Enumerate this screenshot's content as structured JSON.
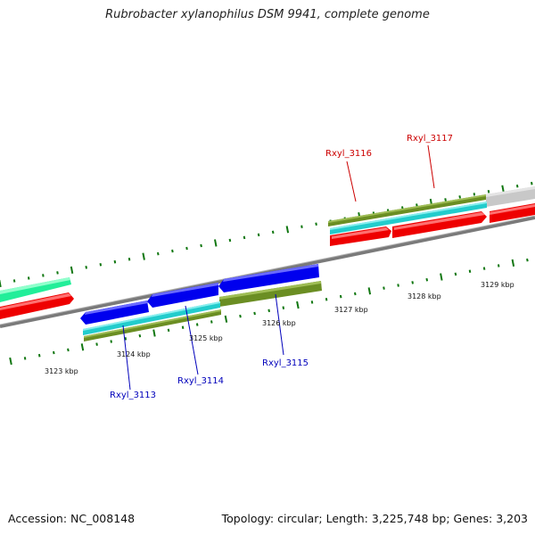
{
  "title": "Rubrobacter xylanophilus DSM 9941, complete genome",
  "footer": {
    "accession": "Accession: NC_008148",
    "summary": "Topology: circular; Length: 3,225,748 bp; Genes: 3,203"
  },
  "scale": {
    "tick_labels": [
      "3123 kbp",
      "3124 kbp",
      "3125 kbp",
      "3126 kbp",
      "3127 kbp",
      "3128 kbp",
      "3129 kbp"
    ]
  },
  "genes": {
    "labeled": [
      {
        "name": "Rxyl_3113",
        "strand": "reverse"
      },
      {
        "name": "Rxyl_3114",
        "strand": "reverse"
      },
      {
        "name": "Rxyl_3115",
        "strand": "reverse"
      },
      {
        "name": "Rxyl_3116",
        "strand": "forward"
      },
      {
        "name": "Rxyl_3117",
        "strand": "forward"
      }
    ]
  },
  "colors": {
    "forward_label": "#cc0000",
    "reverse_label": "#0000bb",
    "cds_forward": "#ee0000",
    "cds_reverse": "#0000ee",
    "cds_other": "#22ee99",
    "feature_cyan": "#22cccc",
    "feature_olive": "#6b8e23",
    "feature_grey": "#c8c8c8",
    "backbone": "#7a7a7a",
    "tick": "#117711"
  }
}
